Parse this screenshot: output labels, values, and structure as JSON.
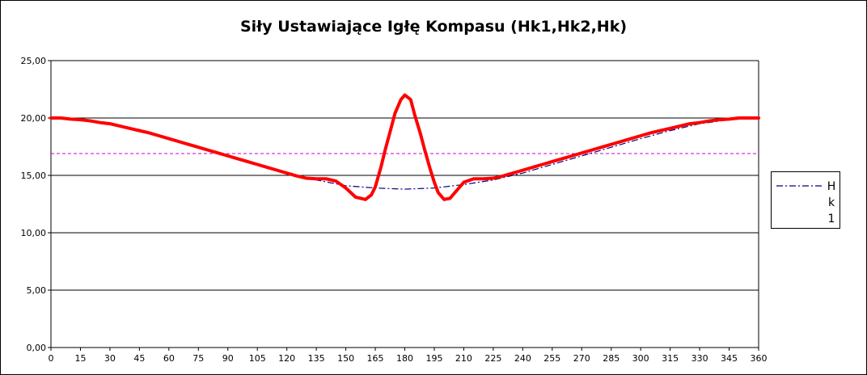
{
  "chart_data": {
    "type": "line",
    "title": "Siły Ustawiające Igłę Kompasu (Hk1,Hk2,Hk)",
    "xlabel": "",
    "ylabel": "",
    "xlim": [
      0,
      360
    ],
    "ylim": [
      0,
      25
    ],
    "x_ticks": [
      "0",
      "15",
      "30",
      "45",
      "60",
      "75",
      "90",
      "105",
      "120",
      "135",
      "150",
      "165",
      "180",
      "195",
      "210",
      "225",
      "240",
      "255",
      "270",
      "285",
      "300",
      "315",
      "330",
      "345",
      "360"
    ],
    "y_ticks": [
      "0,00",
      "5,00",
      "10,00",
      "15,00",
      "20,00",
      "25,00"
    ],
    "grid": "horizontal",
    "legend_position": "right",
    "colors": {
      "red_series": "#ff0000",
      "hk1_series": "#000080",
      "reference_line": "#cc00cc"
    },
    "series": [
      {
        "name": "",
        "style": "solid-thick-red",
        "x": [
          0,
          5,
          10,
          15,
          20,
          25,
          30,
          35,
          40,
          45,
          50,
          55,
          60,
          65,
          70,
          75,
          80,
          85,
          90,
          95,
          100,
          105,
          110,
          115,
          120,
          125,
          130,
          135,
          140,
          145,
          150,
          155,
          160,
          163,
          165,
          168,
          170,
          173,
          175,
          178,
          180,
          183,
          185,
          188,
          190,
          193,
          195,
          197,
          200,
          203,
          205,
          210,
          215,
          220,
          225,
          230,
          235,
          240,
          245,
          250,
          255,
          260,
          265,
          270,
          275,
          280,
          285,
          290,
          295,
          300,
          305,
          310,
          315,
          320,
          325,
          330,
          335,
          340,
          345,
          350,
          355,
          360
        ],
        "values": [
          20.0,
          20.0,
          19.9,
          19.85,
          19.75,
          19.6,
          19.5,
          19.3,
          19.1,
          18.9,
          18.7,
          18.45,
          18.2,
          17.95,
          17.7,
          17.45,
          17.2,
          16.95,
          16.7,
          16.45,
          16.2,
          15.95,
          15.7,
          15.45,
          15.2,
          14.95,
          14.75,
          14.7,
          14.7,
          14.5,
          13.9,
          13.1,
          12.9,
          13.3,
          14.0,
          15.8,
          17.2,
          19.1,
          20.4,
          21.6,
          22.0,
          21.6,
          20.3,
          18.6,
          17.3,
          15.5,
          14.4,
          13.5,
          12.9,
          13.0,
          13.4,
          14.4,
          14.7,
          14.7,
          14.75,
          14.95,
          15.2,
          15.45,
          15.7,
          15.95,
          16.2,
          16.45,
          16.7,
          16.95,
          17.2,
          17.45,
          17.7,
          17.95,
          18.2,
          18.45,
          18.7,
          18.9,
          19.1,
          19.3,
          19.5,
          19.6,
          19.75,
          19.85,
          19.9,
          20.0,
          20.0,
          20.0
        ]
      },
      {
        "name": "Hk1",
        "style": "dash-dot-navy",
        "x": [
          0,
          15,
          30,
          45,
          60,
          75,
          90,
          105,
          120,
          135,
          150,
          165,
          180,
          195,
          210,
          225,
          240,
          255,
          270,
          285,
          300,
          315,
          330,
          345,
          360
        ],
        "values": [
          20.0,
          19.85,
          19.5,
          18.9,
          18.2,
          17.45,
          16.7,
          15.95,
          15.2,
          14.6,
          14.1,
          13.9,
          13.8,
          13.9,
          14.2,
          14.6,
          15.2,
          15.95,
          16.7,
          17.45,
          18.2,
          18.9,
          19.5,
          19.85,
          20.0
        ]
      },
      {
        "name": "",
        "style": "dashed-magenta",
        "x": [
          0,
          360
        ],
        "values": [
          16.9,
          16.9
        ]
      }
    ]
  }
}
